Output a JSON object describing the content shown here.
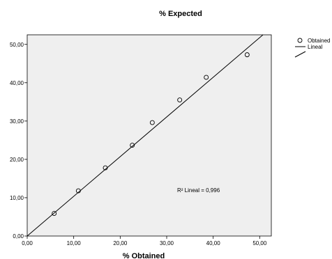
{
  "chart_data": {
    "type": "scatter",
    "title": "% Expected",
    "xlabel": "% Obtained",
    "ylabel": "",
    "xlim": [
      0,
      52.5
    ],
    "ylim": [
      0,
      52.5
    ],
    "xticks": [
      "0,00",
      "10,00",
      "20,00",
      "30,00",
      "40,00",
      "50,00"
    ],
    "yticks": [
      "0,00",
      "10,00",
      "20,00",
      "30,00",
      "40,00",
      "50,00"
    ],
    "tick_values": [
      0,
      10,
      20,
      30,
      40,
      50
    ],
    "grid": false,
    "background_color": "#efefef",
    "legend_position": "top-right",
    "series": [
      {
        "name": "Obtained",
        "kind": "points",
        "x": [
          5.8,
          11.0,
          16.8,
          22.6,
          26.9,
          32.8,
          38.5,
          47.3
        ],
        "y": [
          5.9,
          11.8,
          17.8,
          23.7,
          29.6,
          35.5,
          41.4,
          47.3
        ]
      },
      {
        "name": "Lineal",
        "kind": "fit-line",
        "x": [
          0,
          50.7
        ],
        "y": [
          0,
          52.5
        ]
      }
    ],
    "annotation": "R² Lineal = 0,996"
  }
}
